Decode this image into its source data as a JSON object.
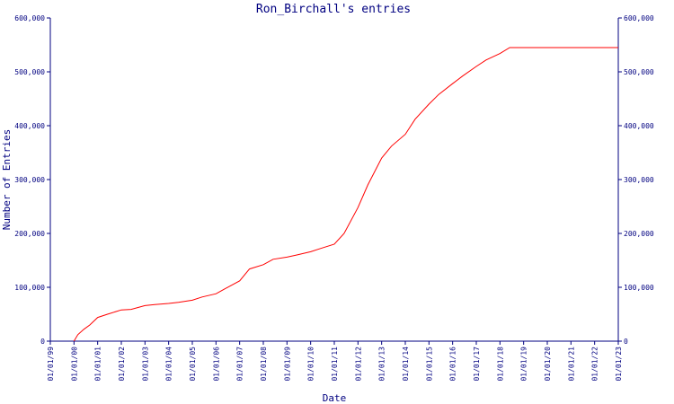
{
  "chart_data": {
    "type": "line",
    "title": "Ron_Birchall's entries",
    "xlabel": "Date",
    "ylabel": "Number of Entries",
    "ylim": [
      0,
      600000
    ],
    "grid": false,
    "legend": "none",
    "colors": {
      "axis": "#000080",
      "series": "#ff0000",
      "background": "#ffffff"
    },
    "y_ticks": [
      {
        "value": 0,
        "label": "0"
      },
      {
        "value": 100000,
        "label": "100,000"
      },
      {
        "value": 200000,
        "label": "200,000"
      },
      {
        "value": 300000,
        "label": "300,000"
      },
      {
        "value": 400000,
        "label": "400,000"
      },
      {
        "value": 500000,
        "label": "500,000"
      },
      {
        "value": 600000,
        "label": "600,000"
      }
    ],
    "x_ticks": [
      "01/01/99",
      "01/01/00",
      "01/01/01",
      "01/01/02",
      "01/01/03",
      "01/01/04",
      "01/01/05",
      "01/01/06",
      "01/01/07",
      "01/01/08",
      "01/01/09",
      "01/01/10",
      "01/01/11",
      "01/01/12",
      "01/01/13",
      "01/01/14",
      "01/01/15",
      "01/01/16",
      "01/01/17",
      "01/01/18",
      "01/01/19",
      "01/01/20",
      "01/01/21",
      "01/01/22",
      "01/01/23"
    ],
    "series": [
      {
        "x": [
          "2000-01-01",
          "2000-03-01",
          "2000-06-01",
          "2000-09-01",
          "2001-01-01",
          "2001-06-01",
          "2002-01-01",
          "2002-06-01",
          "2003-01-01",
          "2003-06-01",
          "2004-01-01",
          "2004-06-01",
          "2005-01-01",
          "2005-06-01",
          "2006-01-01",
          "2006-06-01",
          "2007-01-01",
          "2007-06-01",
          "2008-01-01",
          "2008-06-01",
          "2009-01-01",
          "2009-06-01",
          "2010-01-01",
          "2010-06-01",
          "2011-01-01",
          "2011-06-01",
          "2012-01-01",
          "2012-06-01",
          "2013-01-01",
          "2013-06-01",
          "2014-01-01",
          "2014-06-01",
          "2015-01-01",
          "2015-06-01",
          "2016-01-01",
          "2016-06-01",
          "2017-01-01",
          "2017-06-01",
          "2018-01-01",
          "2018-06-01",
          "2023-01-01"
        ],
        "y": [
          0,
          12000,
          22000,
          30000,
          44000,
          50000,
          58000,
          59000,
          66000,
          68000,
          70000,
          72000,
          76000,
          82000,
          88000,
          98000,
          112000,
          134000,
          142000,
          152000,
          156000,
          160000,
          166000,
          172000,
          180000,
          200000,
          248000,
          290000,
          340000,
          362000,
          384000,
          412000,
          440000,
          458000,
          478000,
          492000,
          510000,
          522000,
          534000,
          545000,
          545000
        ]
      }
    ]
  }
}
